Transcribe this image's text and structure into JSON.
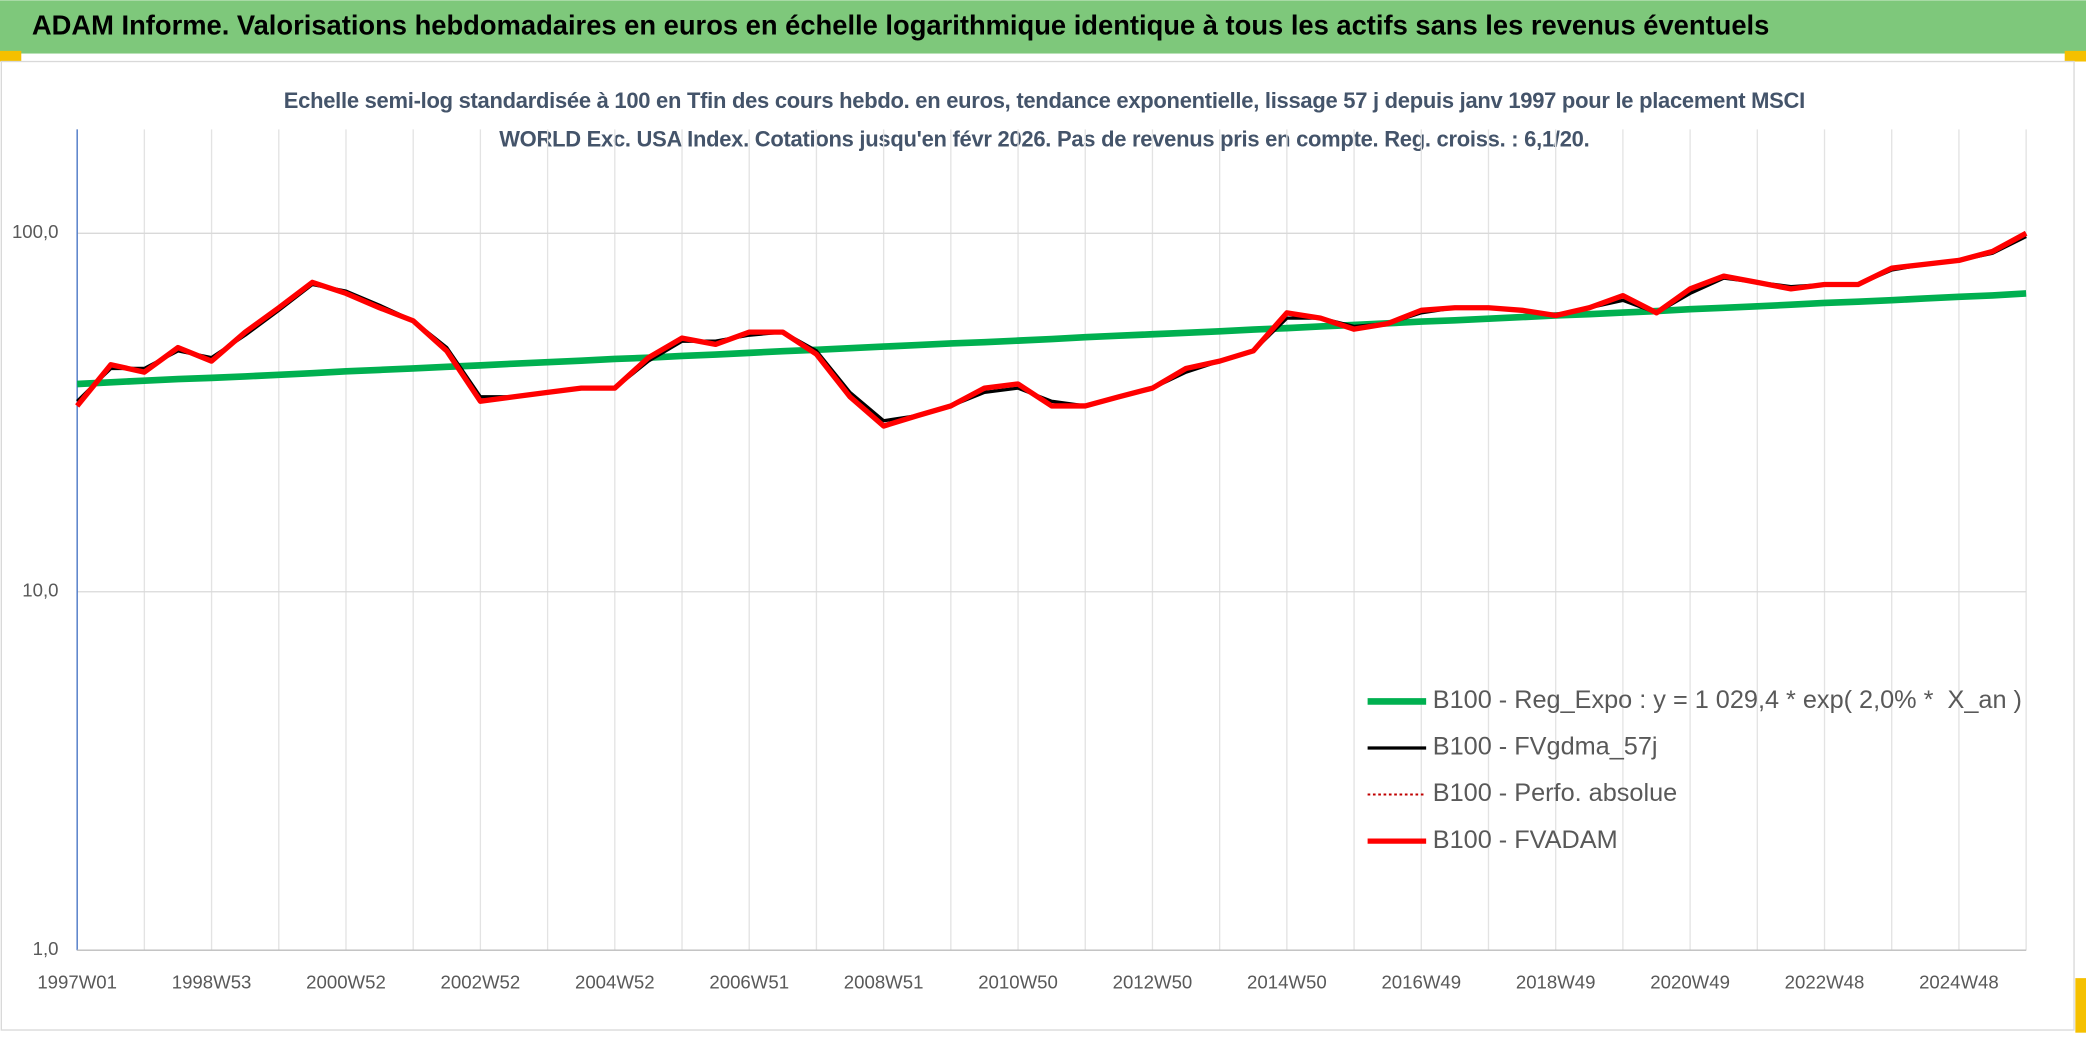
{
  "chart_data": {
    "type": "line",
    "title": "ADAM Informe. Valorisations hebdomadaires en euros en échelle logarithmique identique à tous les actifs sans les revenus éventuels",
    "subtitle": "Echelle semi-log standardisée à 100 en Tfin des cours hebdo. en euros, tendance exponentielle, lissage 57 j depuis janv 1997 pour le placement MSCI WORLD Exc. USA Index. Cotations jusqu'en févr 2026. Pas de revenus pris en compte. Reg. croiss. : 6,1/20.",
    "log_scale": true,
    "grid": true,
    "legend": "lower right",
    "ylim": [
      1,
      195
    ],
    "yticks": [
      {
        "value": 1,
        "label": "1,0"
      },
      {
        "value": 10,
        "label": "10,0"
      },
      {
        "value": 100,
        "label": "100,0"
      }
    ],
    "categories": [
      "1997W01",
      null,
      null,
      null,
      "1998W53",
      null,
      null,
      null,
      "2000W52",
      null,
      null,
      null,
      "2002W52",
      null,
      null,
      null,
      "2004W52",
      null,
      null,
      null,
      "2006W51",
      null,
      null,
      null,
      "2008W51",
      null,
      null,
      null,
      "2010W50",
      null,
      null,
      null,
      "2012W50",
      null,
      null,
      null,
      "2014W50",
      null,
      null,
      null,
      "2016W49",
      null,
      null,
      null,
      "2018W49",
      null,
      null,
      null,
      "2020W49",
      null,
      null,
      null,
      "2022W48",
      null,
      null,
      null,
      "2024W48",
      null,
      null
    ],
    "series": [
      {
        "name": "B100 - Reg_Expo : y = 1 029,4 * exp( 2,0% *  X_an )",
        "color": "#00b050",
        "width": 5,
        "style": "solid",
        "values": [
          38.0,
          38.4,
          38.8,
          39.2,
          39.5,
          39.9,
          40.3,
          40.7,
          41.2,
          41.6,
          42.0,
          42.4,
          42.8,
          43.3,
          43.7,
          44.1,
          44.6,
          45.0,
          45.5,
          45.9,
          46.4,
          46.9,
          47.3,
          47.8,
          48.3,
          48.8,
          49.3,
          49.7,
          50.2,
          50.7,
          51.3,
          51.8,
          52.3,
          52.8,
          53.3,
          53.9,
          54.4,
          55.0,
          55.5,
          56.1,
          56.7,
          57.2,
          57.8,
          58.4,
          59.0,
          59.5,
          60.1,
          60.7,
          61.4,
          62.0,
          62.6,
          63.2,
          63.9,
          64.5,
          65.1,
          65.8,
          66.5,
          67.1,
          68.0
        ]
      },
      {
        "name": "B100 - FVgdma_57j",
        "color": "#000000",
        "width": 2.5,
        "style": "solid",
        "values": [
          34,
          42,
          42,
          47,
          45,
          52,
          61,
          72,
          69,
          63,
          57,
          48,
          35,
          35,
          36,
          37,
          37,
          44,
          50,
          50,
          52,
          53,
          47,
          36,
          30,
          31,
          33,
          36,
          37,
          34,
          33,
          35,
          37,
          41,
          44,
          47,
          58,
          58,
          55,
          56,
          60,
          62,
          62,
          61,
          59,
          62,
          65,
          60,
          68,
          75,
          73,
          71,
          72,
          72,
          79,
          82,
          84,
          88,
          98
        ]
      },
      {
        "name": "B100 - Perfo. absolue",
        "color": "#c00000",
        "width": 1.5,
        "style": "dotted",
        "values": [
          33,
          43,
          41,
          48,
          44,
          53,
          62,
          73,
          68,
          62,
          57,
          47,
          34,
          35,
          36,
          37,
          37,
          45,
          51,
          49,
          53,
          53,
          46,
          35,
          29,
          31,
          33,
          37,
          38,
          33,
          33,
          35,
          37,
          42,
          44,
          47,
          60,
          58,
          54,
          56,
          61,
          62,
          62,
          61,
          59,
          62,
          67,
          60,
          70,
          76,
          73,
          70,
          72,
          72,
          80,
          82,
          84,
          89,
          100
        ]
      },
      {
        "name": "B100 - FVADAM",
        "color": "#ff0000",
        "width": 4,
        "style": "solid",
        "values": [
          33,
          43,
          41,
          48,
          44,
          53,
          62,
          73,
          68,
          62,
          57,
          47,
          34,
          35,
          36,
          37,
          37,
          45,
          51,
          49,
          53,
          53,
          46,
          35,
          29,
          31,
          33,
          37,
          38,
          33,
          33,
          35,
          37,
          42,
          44,
          47,
          60,
          58,
          54,
          56,
          61,
          62,
          62,
          61,
          59,
          62,
          67,
          60,
          70,
          76,
          73,
          70,
          72,
          72,
          80,
          82,
          84,
          89,
          100
        ]
      }
    ]
  }
}
